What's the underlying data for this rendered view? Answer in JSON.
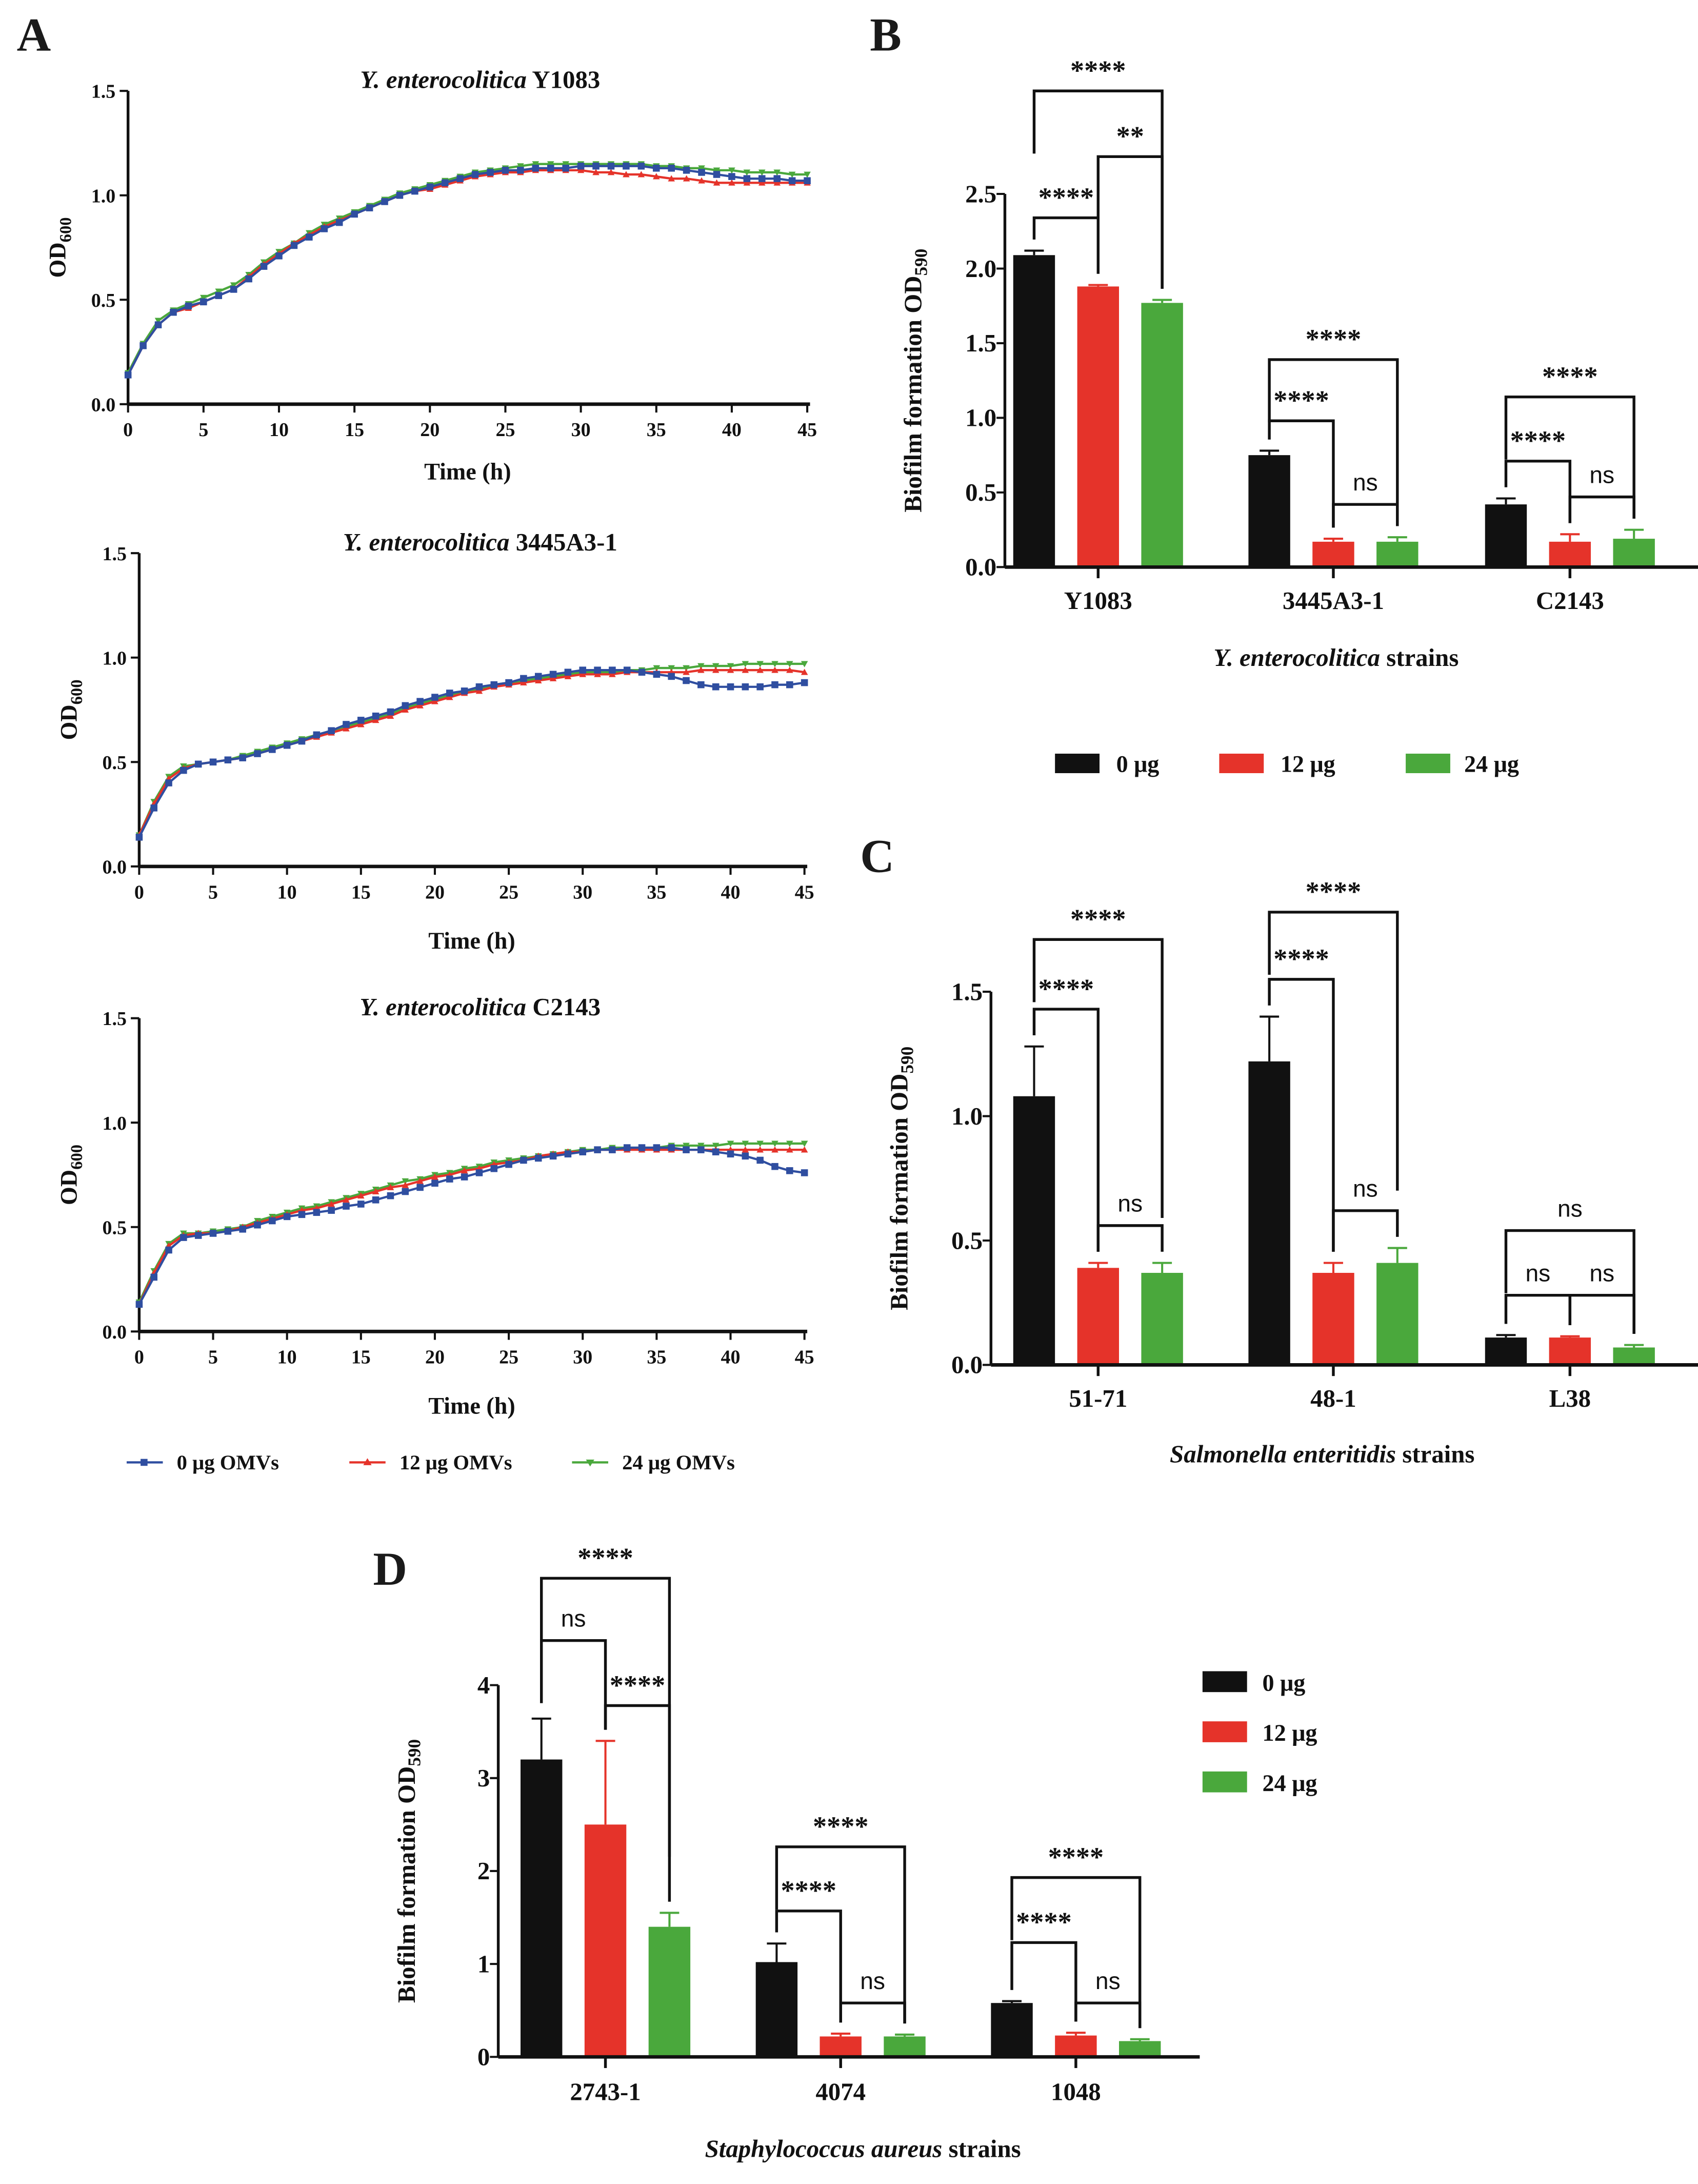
{
  "panels": {
    "a": "A",
    "b": "B",
    "c": "C",
    "d": "D"
  },
  "line_legend": [
    "0 μg OMVs",
    "12 μg OMVs",
    "24 μg OMVs"
  ],
  "bar_legend": [
    "0 μg",
    "12 μg",
    "24 μg"
  ],
  "colors": {
    "blue": "#2f4ea0",
    "red": "#e5332a",
    "green": "#4aa83c",
    "black": "#111111"
  },
  "chart_data": [
    {
      "id": "a1",
      "type": "line",
      "title_italic": "Y. enterocolitica",
      "title_rest": " Y1083",
      "xlabel": "Time (h)",
      "ylabel_main": "OD",
      "ylabel_sub": "600",
      "xlim": [
        0,
        45
      ],
      "ylim": [
        0,
        1.5
      ],
      "xticks": [
        "0",
        "5",
        "10",
        "15",
        "20",
        "25",
        "30",
        "35",
        "40",
        "45"
      ],
      "yticks": [
        "0.0",
        "0.5",
        "1.0",
        "1.5"
      ],
      "series": [
        {
          "name": "0 μg OMVs",
          "values": [
            0.14,
            0.28,
            0.38,
            0.44,
            0.47,
            0.49,
            0.52,
            0.55,
            0.6,
            0.66,
            0.71,
            0.76,
            0.8,
            0.84,
            0.87,
            0.91,
            0.94,
            0.97,
            1.0,
            1.02,
            1.04,
            1.06,
            1.08,
            1.1,
            1.11,
            1.12,
            1.12,
            1.13,
            1.13,
            1.13,
            1.14,
            1.14,
            1.14,
            1.14,
            1.14,
            1.13,
            1.13,
            1.12,
            1.11,
            1.1,
            1.09,
            1.08,
            1.08,
            1.08,
            1.07,
            1.07
          ]
        },
        {
          "name": "12 μg OMVs",
          "values": [
            0.14,
            0.28,
            0.38,
            0.44,
            0.46,
            0.49,
            0.52,
            0.55,
            0.61,
            0.67,
            0.72,
            0.77,
            0.81,
            0.85,
            0.88,
            0.91,
            0.94,
            0.97,
            1.0,
            1.02,
            1.03,
            1.05,
            1.07,
            1.09,
            1.1,
            1.11,
            1.11,
            1.12,
            1.12,
            1.12,
            1.12,
            1.11,
            1.11,
            1.1,
            1.1,
            1.09,
            1.08,
            1.08,
            1.07,
            1.06,
            1.06,
            1.06,
            1.06,
            1.06,
            1.06,
            1.06
          ]
        },
        {
          "name": "24 μg OMVs",
          "values": [
            0.15,
            0.29,
            0.4,
            0.45,
            0.48,
            0.51,
            0.54,
            0.57,
            0.62,
            0.68,
            0.73,
            0.77,
            0.82,
            0.86,
            0.89,
            0.92,
            0.95,
            0.98,
            1.01,
            1.03,
            1.05,
            1.07,
            1.09,
            1.11,
            1.12,
            1.13,
            1.14,
            1.15,
            1.15,
            1.15,
            1.15,
            1.15,
            1.15,
            1.15,
            1.15,
            1.14,
            1.14,
            1.13,
            1.13,
            1.12,
            1.12,
            1.11,
            1.11,
            1.11,
            1.1,
            1.1
          ]
        }
      ]
    },
    {
      "id": "a2",
      "type": "line",
      "title_italic": "Y. enterocolitica",
      "title_rest": " 3445A3-1",
      "xlabel": "Time (h)",
      "ylabel_main": "OD",
      "ylabel_sub": "600",
      "xlim": [
        0,
        45
      ],
      "ylim": [
        0,
        1.5
      ],
      "xticks": [
        "0",
        "5",
        "10",
        "15",
        "20",
        "25",
        "30",
        "35",
        "40",
        "45"
      ],
      "yticks": [
        "0.0",
        "0.5",
        "1.0",
        "1.5"
      ],
      "series": [
        {
          "name": "0 μg OMVs",
          "values": [
            0.14,
            0.28,
            0.4,
            0.46,
            0.49,
            0.5,
            0.51,
            0.52,
            0.54,
            0.56,
            0.58,
            0.6,
            0.63,
            0.65,
            0.68,
            0.7,
            0.72,
            0.74,
            0.77,
            0.79,
            0.81,
            0.83,
            0.84,
            0.86,
            0.87,
            0.88,
            0.9,
            0.91,
            0.92,
            0.93,
            0.94,
            0.94,
            0.94,
            0.94,
            0.93,
            0.92,
            0.91,
            0.89,
            0.87,
            0.86,
            0.86,
            0.86,
            0.86,
            0.87,
            0.87,
            0.88
          ]
        },
        {
          "name": "12 μg OMVs",
          "values": [
            0.15,
            0.3,
            0.42,
            0.47,
            0.49,
            0.5,
            0.51,
            0.52,
            0.54,
            0.56,
            0.58,
            0.6,
            0.62,
            0.64,
            0.66,
            0.68,
            0.7,
            0.72,
            0.75,
            0.77,
            0.79,
            0.81,
            0.83,
            0.84,
            0.86,
            0.87,
            0.88,
            0.89,
            0.9,
            0.91,
            0.92,
            0.92,
            0.92,
            0.93,
            0.93,
            0.93,
            0.93,
            0.93,
            0.94,
            0.94,
            0.94,
            0.94,
            0.94,
            0.94,
            0.94,
            0.93
          ]
        },
        {
          "name": "24 μg OMVs",
          "values": [
            0.15,
            0.31,
            0.43,
            0.48,
            0.49,
            0.5,
            0.51,
            0.53,
            0.55,
            0.57,
            0.59,
            0.61,
            0.63,
            0.65,
            0.67,
            0.69,
            0.71,
            0.73,
            0.76,
            0.78,
            0.8,
            0.82,
            0.84,
            0.85,
            0.87,
            0.88,
            0.89,
            0.9,
            0.91,
            0.92,
            0.93,
            0.93,
            0.93,
            0.94,
            0.94,
            0.95,
            0.95,
            0.95,
            0.96,
            0.96,
            0.96,
            0.97,
            0.97,
            0.97,
            0.97,
            0.97
          ]
        }
      ]
    },
    {
      "id": "a3",
      "type": "line",
      "title_italic": "Y. enterocolitica",
      "title_rest": " C2143",
      "xlabel": "Time (h)",
      "ylabel_main": "OD",
      "ylabel_sub": "600",
      "xlim": [
        0,
        45
      ],
      "ylim": [
        0,
        1.5
      ],
      "xticks": [
        "0",
        "5",
        "10",
        "15",
        "20",
        "25",
        "30",
        "35",
        "40",
        "45"
      ],
      "yticks": [
        "0.0",
        "0.5",
        "1.0",
        "1.5"
      ],
      "series": [
        {
          "name": "0 μg OMVs",
          "values": [
            0.13,
            0.26,
            0.39,
            0.45,
            0.46,
            0.47,
            0.48,
            0.49,
            0.51,
            0.53,
            0.55,
            0.56,
            0.57,
            0.58,
            0.6,
            0.61,
            0.63,
            0.65,
            0.67,
            0.69,
            0.71,
            0.73,
            0.74,
            0.76,
            0.78,
            0.8,
            0.82,
            0.83,
            0.84,
            0.85,
            0.86,
            0.87,
            0.87,
            0.88,
            0.88,
            0.88,
            0.88,
            0.87,
            0.87,
            0.86,
            0.85,
            0.84,
            0.82,
            0.79,
            0.77,
            0.76
          ]
        },
        {
          "name": "12 μg OMVs",
          "values": [
            0.13,
            0.28,
            0.41,
            0.46,
            0.47,
            0.47,
            0.48,
            0.5,
            0.52,
            0.54,
            0.56,
            0.58,
            0.59,
            0.61,
            0.63,
            0.65,
            0.67,
            0.69,
            0.7,
            0.72,
            0.74,
            0.75,
            0.77,
            0.78,
            0.8,
            0.81,
            0.82,
            0.84,
            0.85,
            0.86,
            0.86,
            0.87,
            0.87,
            0.87,
            0.87,
            0.87,
            0.87,
            0.87,
            0.87,
            0.87,
            0.87,
            0.87,
            0.87,
            0.87,
            0.87,
            0.87
          ]
        },
        {
          "name": "24 μg OMVs",
          "values": [
            0.14,
            0.29,
            0.42,
            0.47,
            0.47,
            0.48,
            0.49,
            0.5,
            0.53,
            0.55,
            0.57,
            0.59,
            0.6,
            0.62,
            0.64,
            0.66,
            0.68,
            0.7,
            0.72,
            0.73,
            0.75,
            0.76,
            0.78,
            0.79,
            0.81,
            0.82,
            0.83,
            0.84,
            0.85,
            0.86,
            0.87,
            0.87,
            0.88,
            0.88,
            0.88,
            0.88,
            0.89,
            0.89,
            0.89,
            0.89,
            0.9,
            0.9,
            0.9,
            0.9,
            0.9,
            0.9
          ]
        }
      ]
    },
    {
      "id": "b",
      "type": "bar",
      "ylabel_main": "Biofilm formation OD",
      "ylabel_sub": "590",
      "xlabel_italic": "Y. enterocolitica",
      "xlabel_rest": " strains",
      "ylim": [
        0,
        2.5
      ],
      "yticks": [
        "0.0",
        "0.5",
        "1.0",
        "1.5",
        "2.0",
        "2.5"
      ],
      "categories": [
        "Y1083",
        "3445A3-1",
        "C2143"
      ],
      "series": [
        {
          "name": "0 μg",
          "values": [
            2.09,
            0.75,
            0.42
          ],
          "errors": [
            0.03,
            0.03,
            0.04
          ]
        },
        {
          "name": "12 μg",
          "values": [
            1.88,
            0.17,
            0.17
          ],
          "errors": [
            0.01,
            0.02,
            0.05
          ]
        },
        {
          "name": "24 μg",
          "values": [
            1.77,
            0.17,
            0.19
          ],
          "errors": [
            0.02,
            0.03,
            0.06
          ]
        }
      ],
      "brackets": [
        {
          "group": 0,
          "from": 0,
          "to": 2,
          "y": 3.19,
          "label": "****"
        },
        {
          "group": 0,
          "from": 1,
          "to": 2,
          "y": 2.75,
          "label": "**"
        },
        {
          "group": 0,
          "from": 0,
          "to": 1,
          "y": 2.34,
          "label": "****"
        },
        {
          "group": 1,
          "from": 0,
          "to": 2,
          "y": 1.39,
          "label": "****"
        },
        {
          "group": 1,
          "from": 0,
          "to": 1,
          "y": 0.98,
          "label": "****"
        },
        {
          "group": 1,
          "from": 1,
          "to": 2,
          "y": 0.42,
          "label": "ns"
        },
        {
          "group": 2,
          "from": 0,
          "to": 2,
          "y": 1.14,
          "label": "****"
        },
        {
          "group": 2,
          "from": 0,
          "to": 1,
          "y": 0.71,
          "label": "****"
        },
        {
          "group": 2,
          "from": 1,
          "to": 2,
          "y": 0.47,
          "label": "ns"
        }
      ]
    },
    {
      "id": "c",
      "type": "bar",
      "ylabel_main": "Biofilm formation OD",
      "ylabel_sub": "590",
      "xlabel_italic": "Salmonella enteritidis",
      "xlabel_rest": " strains",
      "ylim": [
        0,
        1.5
      ],
      "yticks": [
        "0.0",
        "0.5",
        "1.0",
        "1.5"
      ],
      "categories": [
        "51-71",
        "48-1",
        "L38"
      ],
      "series": [
        {
          "name": "0 μg",
          "values": [
            1.08,
            1.22,
            0.11
          ],
          "errors": [
            0.2,
            0.18,
            0.01
          ]
        },
        {
          "name": "12 μg",
          "values": [
            0.39,
            0.37,
            0.11
          ],
          "errors": [
            0.02,
            0.04,
            0.005
          ]
        },
        {
          "name": "24 μg",
          "values": [
            0.37,
            0.41,
            0.07
          ],
          "errors": [
            0.04,
            0.06,
            0.01
          ]
        }
      ],
      "brackets": [
        {
          "group": 0,
          "from": 0,
          "to": 2,
          "y": 1.71,
          "label": "****"
        },
        {
          "group": 0,
          "from": 0,
          "to": 1,
          "y": 1.43,
          "label": "****"
        },
        {
          "group": 0,
          "from": 1,
          "to": 2,
          "y": 0.56,
          "label": "ns"
        },
        {
          "group": 1,
          "from": 0,
          "to": 2,
          "y": 1.82,
          "label": "****"
        },
        {
          "group": 1,
          "from": 0,
          "to": 1,
          "y": 1.55,
          "label": "****"
        },
        {
          "group": 1,
          "from": 1,
          "to": 2,
          "y": 0.62,
          "label": "ns"
        },
        {
          "group": 2,
          "from": 0,
          "to": 2,
          "y": 0.54,
          "label": "ns"
        },
        {
          "group": 2,
          "from": 0,
          "to": 1,
          "y": 0.28,
          "label": "ns"
        },
        {
          "group": 2,
          "from": 1,
          "to": 2,
          "y": 0.28,
          "label": "ns"
        }
      ]
    },
    {
      "id": "d",
      "type": "bar",
      "ylabel_main": "Biofilm formation OD",
      "ylabel_sub": "590",
      "xlabel_italic": "Staphylococcus aureus",
      "xlabel_rest": " strains",
      "ylim": [
        0,
        4
      ],
      "yticks": [
        "0",
        "1",
        "2",
        "3",
        "4"
      ],
      "categories": [
        "2743-1",
        "4074",
        "1048"
      ],
      "series": [
        {
          "name": "0 μg",
          "values": [
            3.2,
            1.02,
            0.58
          ],
          "errors": [
            0.44,
            0.2,
            0.02
          ]
        },
        {
          "name": "12 μg",
          "values": [
            2.5,
            0.22,
            0.23
          ],
          "errors": [
            0.9,
            0.03,
            0.03
          ]
        },
        {
          "name": "24 μg",
          "values": [
            1.4,
            0.22,
            0.17
          ],
          "errors": [
            0.15,
            0.02,
            0.02
          ]
        }
      ],
      "brackets": [
        {
          "group": 0,
          "from": 0,
          "to": 2,
          "y": 5.15,
          "label": "****"
        },
        {
          "group": 0,
          "from": 0,
          "to": 1,
          "y": 4.48,
          "label": "ns"
        },
        {
          "group": 0,
          "from": 1,
          "to": 2,
          "y": 3.78,
          "label": "****"
        },
        {
          "group": 1,
          "from": 0,
          "to": 2,
          "y": 2.26,
          "label": "****"
        },
        {
          "group": 1,
          "from": 0,
          "to": 1,
          "y": 1.57,
          "label": "****"
        },
        {
          "group": 1,
          "from": 1,
          "to": 2,
          "y": 0.58,
          "label": "ns"
        },
        {
          "group": 2,
          "from": 0,
          "to": 2,
          "y": 1.93,
          "label": "****"
        },
        {
          "group": 2,
          "from": 0,
          "to": 1,
          "y": 1.23,
          "label": "****"
        },
        {
          "group": 2,
          "from": 1,
          "to": 2,
          "y": 0.58,
          "label": "ns"
        }
      ]
    }
  ]
}
